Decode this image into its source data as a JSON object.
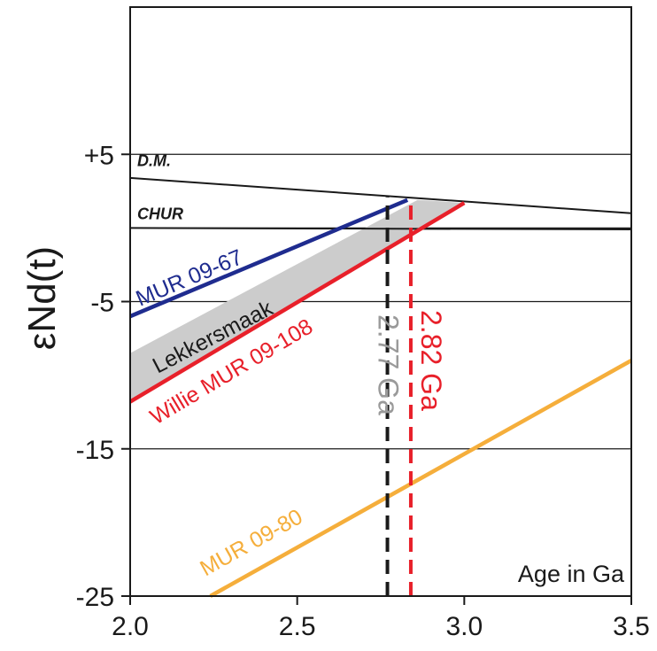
{
  "chart_data": {
    "type": "line",
    "title": "",
    "xlabel": "",
    "ylabel": "εNd(t)",
    "corner_label": "Age in Ga",
    "xlim": [
      2.0,
      3.5
    ],
    "ylim": [
      -25,
      15
    ],
    "x_ticks": [
      {
        "value": 2.0,
        "label": "2.0"
      },
      {
        "value": 2.5,
        "label": "2.5"
      },
      {
        "value": 3.0,
        "label": "3.0"
      },
      {
        "value": 3.5,
        "label": "3.5"
      }
    ],
    "y_ticks": [
      {
        "value": 5,
        "label": "+5"
      },
      {
        "value": -5,
        "label": "-5"
      },
      {
        "value": -15,
        "label": "-15"
      },
      {
        "value": -25,
        "label": "-25"
      }
    ],
    "gridlines_y": [
      5,
      0,
      -5,
      -15
    ],
    "reference_lines": [
      {
        "name": "D.M.",
        "x": [
          2.0,
          3.5
        ],
        "y": [
          3.4,
          1.0
        ],
        "color": "#1a1a1a"
      },
      {
        "name": "CHUR",
        "x": [
          2.0,
          3.5
        ],
        "y": [
          0.0,
          -0.1
        ],
        "color": "#1a1a1a"
      }
    ],
    "series": [
      {
        "name": "MUR 09-67",
        "x": [
          2.0,
          2.83
        ],
        "y": [
          -6.0,
          1.9
        ],
        "color": "#1f2c8f"
      },
      {
        "name": "Willie MUR 09-108",
        "x": [
          2.0,
          3.0
        ],
        "y": [
          -11.8,
          1.7
        ],
        "color": "#e8202a"
      },
      {
        "name": "MUR 09-80",
        "x": [
          2.24,
          3.5
        ],
        "y": [
          -25.0,
          -9.0
        ],
        "color": "#f5ae3b"
      }
    ],
    "bands": [
      {
        "name": "Lekkersmaak",
        "polygon_x": [
          2.0,
          2.86,
          3.0,
          2.0
        ],
        "polygon_y": [
          -8.5,
          1.9,
          1.7,
          -11.8
        ],
        "color": "#cccccc"
      }
    ],
    "age_markers": [
      {
        "label": "2.77 Ga",
        "x": 2.77,
        "y_from": -25,
        "y_to": 2.1,
        "color": "#1a1a1a",
        "label_color": "#9a9a9a"
      },
      {
        "label": "2.82 Ga",
        "x": 2.84,
        "y_from": -25,
        "y_to": 1.9,
        "color": "#e8202a",
        "label_color": "#e8202a"
      }
    ]
  }
}
